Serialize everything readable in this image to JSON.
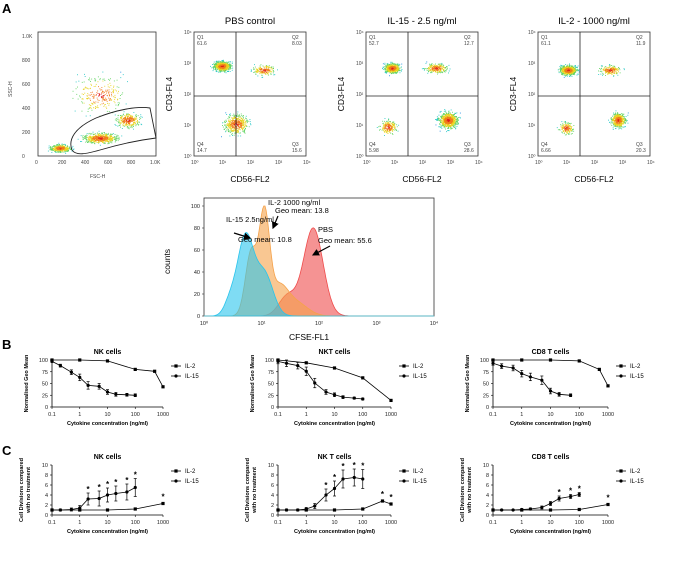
{
  "panels": {
    "A": "A",
    "B": "B",
    "C": "C"
  },
  "panel_a": {
    "scatter": {
      "ylabel": "SSC-H",
      "xlabel": "FSC-H",
      "ticks": [
        "0",
        "200",
        "400",
        "600",
        "800",
        "1.0K"
      ]
    },
    "flow_plots": [
      {
        "title": "PBS control",
        "xlabel": "CD56-FL2",
        "ylabel": "CD3-FL4",
        "quadrants": [
          {
            "label": "Q1",
            "value": "61.6"
          },
          {
            "label": "Q2",
            "value": "8.03"
          },
          {
            "label": "Q3",
            "value": "15.6"
          },
          {
            "label": "Q4",
            "value": "14.7"
          }
        ]
      },
      {
        "title": "IL-15 - 2.5 ng/ml",
        "xlabel": "CD56-FL2",
        "ylabel": "CD3-FL4",
        "quadrants": [
          {
            "label": "Q1",
            "value": "52.7"
          },
          {
            "label": "Q2",
            "value": "12.7"
          },
          {
            "label": "Q3",
            "value": "28.6"
          },
          {
            "label": "Q4",
            "value": "5.98"
          }
        ]
      },
      {
        "title": "IL-2 - 1000 ng/ml",
        "xlabel": "CD56-FL2",
        "ylabel": "CD3-FL4",
        "quadrants": [
          {
            "label": "Q1",
            "value": "61.1"
          },
          {
            "label": "Q2",
            "value": "11.9"
          },
          {
            "label": "Q3",
            "value": "20.3"
          },
          {
            "label": "Q4",
            "value": "6.66"
          }
        ]
      }
    ],
    "histogram": {
      "ylabel": "counts",
      "xlabel": "CFSE-FL1",
      "yticks": [
        "0",
        "20",
        "40",
        "60",
        "80",
        "100"
      ],
      "xticks": [
        "10⁰",
        "10¹",
        "10²",
        "10³",
        "10⁴"
      ],
      "annotations": [
        {
          "line1": "IL-15 2.5ng/ml",
          "line2": "Geo mean: 10.8",
          "color": "#29c4ec"
        },
        {
          "line1": "IL-2 1000 ng/ml",
          "line2": "Geo mean: 13.8",
          "color": "#f5a24a"
        },
        {
          "line1": "PBS",
          "line2": "Geo mean: 55.6",
          "color": "#ef4b4b"
        }
      ]
    }
  },
  "legend": {
    "il2": "IL-2",
    "il15": "IL-15"
  },
  "chart_data": [
    {
      "type": "line",
      "panel": "B",
      "title": "NK cells",
      "ylabel": "Normalised Geo Mean",
      "xlabel": "Cytokine concentration (ng/ml)",
      "xscale": "log",
      "ylim": [
        0,
        100
      ],
      "yticks": [
        "0",
        "25",
        "50",
        "75",
        "100"
      ],
      "xticks": [
        "0.1",
        "1",
        "10",
        "100",
        "1000"
      ],
      "series": [
        {
          "name": "IL-2",
          "marker": "square",
          "x": [
            0.1,
            1,
            10,
            100,
            500,
            1000
          ],
          "y": [
            100,
            100,
            98,
            80,
            76,
            43
          ]
        },
        {
          "name": "IL-15",
          "marker": "circle",
          "x": [
            0.1,
            0.2,
            0.5,
            1,
            2,
            5,
            10,
            20,
            50,
            100
          ],
          "y": [
            97,
            88,
            74,
            63,
            46,
            44,
            32,
            27,
            26,
            25
          ],
          "err": [
            2,
            3,
            5,
            7,
            8,
            6,
            5,
            4,
            3,
            3
          ]
        }
      ]
    },
    {
      "type": "line",
      "panel": "B",
      "title": "NKT cells",
      "ylabel": "Normalised Geo Mean",
      "xlabel": "Cytokine concentration (ng/ml)",
      "xscale": "log",
      "ylim": [
        0,
        100
      ],
      "yticks": [
        "0",
        "25",
        "50",
        "75",
        "100"
      ],
      "xticks": [
        "0.1",
        "1",
        "10",
        "100",
        "1000"
      ],
      "series": [
        {
          "name": "IL-2",
          "marker": "square",
          "x": [
            0.1,
            1,
            10,
            100,
            1000
          ],
          "y": [
            100,
            94,
            83,
            62,
            14
          ]
        },
        {
          "name": "IL-15",
          "marker": "circle",
          "x": [
            0.1,
            0.2,
            0.5,
            1,
            2,
            5,
            10,
            20,
            50,
            100
          ],
          "y": [
            97,
            93,
            88,
            76,
            51,
            32,
            26,
            21,
            19,
            17
          ],
          "err": [
            5,
            7,
            7,
            9,
            10,
            5,
            4,
            3,
            2,
            2
          ]
        }
      ]
    },
    {
      "type": "line",
      "panel": "B",
      "title": "CD8 T cells",
      "ylabel": "Normalised Geo Mean",
      "xlabel": "Cytokine concentration (ng/ml)",
      "xscale": "log",
      "ylim": [
        0,
        100
      ],
      "yticks": [
        "0",
        "25",
        "50",
        "75",
        "100"
      ],
      "xticks": [
        "0.1",
        "1",
        "10",
        "100",
        "1000"
      ],
      "series": [
        {
          "name": "IL-2",
          "marker": "square",
          "x": [
            0.1,
            1,
            10,
            100,
            500,
            1000
          ],
          "y": [
            100,
            100,
            100,
            98,
            80,
            45
          ]
        },
        {
          "name": "IL-15",
          "marker": "circle",
          "x": [
            0.1,
            0.2,
            0.5,
            1,
            2,
            5,
            10,
            20,
            50
          ],
          "y": [
            93,
            87,
            83,
            71,
            64,
            57,
            34,
            27,
            25
          ],
          "err": [
            4,
            5,
            6,
            7,
            8,
            9,
            6,
            4,
            3
          ]
        }
      ]
    },
    {
      "type": "line",
      "panel": "C",
      "title": "NK cells",
      "ylabel": "Cell Divisions compared with no treatment",
      "xlabel": "Cytokine concentration (ng/ml)",
      "xscale": "log",
      "ylim": [
        0,
        10
      ],
      "yticks": [
        "0",
        "2",
        "4",
        "6",
        "8",
        "10"
      ],
      "xticks": [
        "0.1",
        "1",
        "10",
        "100",
        "1000"
      ],
      "series": [
        {
          "name": "IL-2",
          "marker": "square",
          "x": [
            0.1,
            1,
            10,
            100,
            1000
          ],
          "y": [
            1,
            1,
            1,
            1.2,
            2.3
          ]
        },
        {
          "name": "IL-15",
          "marker": "circle",
          "x": [
            0.1,
            0.2,
            0.5,
            1,
            2,
            5,
            10,
            20,
            50,
            100
          ],
          "y": [
            1,
            1,
            1.1,
            1.4,
            3.2,
            3.3,
            4,
            4.3,
            4.6,
            5.5
          ],
          "err": [
            0.2,
            0.2,
            0.3,
            0.5,
            1.2,
            1.5,
            1.4,
            1.5,
            1.6,
            1.8
          ],
          "stars": [
            2,
            5,
            10,
            20,
            50,
            100
          ]
        }
      ],
      "stars_il2": [
        1000
      ]
    },
    {
      "type": "line",
      "panel": "C",
      "title": "NK T cells",
      "ylabel": "Cell Divisions compared with no treatment",
      "xlabel": "Cytokine concentration (ng/ml)",
      "xscale": "log",
      "ylim": [
        0,
        10
      ],
      "yticks": [
        "0",
        "2",
        "4",
        "6",
        "8",
        "10"
      ],
      "xticks": [
        "0.1",
        "1",
        "10",
        "100",
        "1000"
      ],
      "series": [
        {
          "name": "IL-2",
          "marker": "square",
          "x": [
            0.1,
            1,
            10,
            100,
            500,
            1000
          ],
          "y": [
            1,
            1,
            1,
            1.2,
            2.8,
            2.2
          ]
        },
        {
          "name": "IL-15",
          "marker": "circle",
          "x": [
            0.1,
            0.2,
            0.5,
            1,
            2,
            5,
            10,
            20,
            50,
            100
          ],
          "y": [
            1,
            1,
            1,
            1.2,
            1.8,
            4,
            5.3,
            7.2,
            7.5,
            7.2
          ],
          "err": [
            0.2,
            0.2,
            0.2,
            0.3,
            0.5,
            1.2,
            1.5,
            1.8,
            1.7,
            1.9
          ],
          "stars": [
            5,
            10,
            20,
            50,
            100
          ]
        }
      ],
      "stars_il2": [
        500,
        1000
      ]
    },
    {
      "type": "line",
      "panel": "C",
      "title": "CD8 T cells",
      "ylabel": "Cell Divisions compared with no treatment",
      "xlabel": "Cytokine concentration (ng/ml)",
      "xscale": "log",
      "ylim": [
        0,
        10
      ],
      "yticks": [
        "0",
        "2",
        "4",
        "6",
        "8",
        "10"
      ],
      "xticks": [
        "0.1",
        "1",
        "10",
        "100",
        "1000"
      ],
      "series": [
        {
          "name": "IL-2",
          "marker": "square",
          "x": [
            0.1,
            1,
            10,
            100,
            1000
          ],
          "y": [
            1,
            1,
            1,
            1.1,
            2.1
          ]
        },
        {
          "name": "IL-15",
          "marker": "circle",
          "x": [
            0.1,
            0.2,
            0.5,
            1,
            2,
            5,
            10,
            20,
            50,
            100
          ],
          "y": [
            1,
            1,
            1,
            1.1,
            1.2,
            1.5,
            2.3,
            3.3,
            3.7,
            4.1
          ],
          "err": [
            0.1,
            0.1,
            0.1,
            0.1,
            0.2,
            0.3,
            0.4,
            0.5,
            0.4,
            0.4
          ],
          "stars": [
            20,
            50,
            100
          ]
        }
      ],
      "stars_il2": [
        1000
      ]
    }
  ]
}
